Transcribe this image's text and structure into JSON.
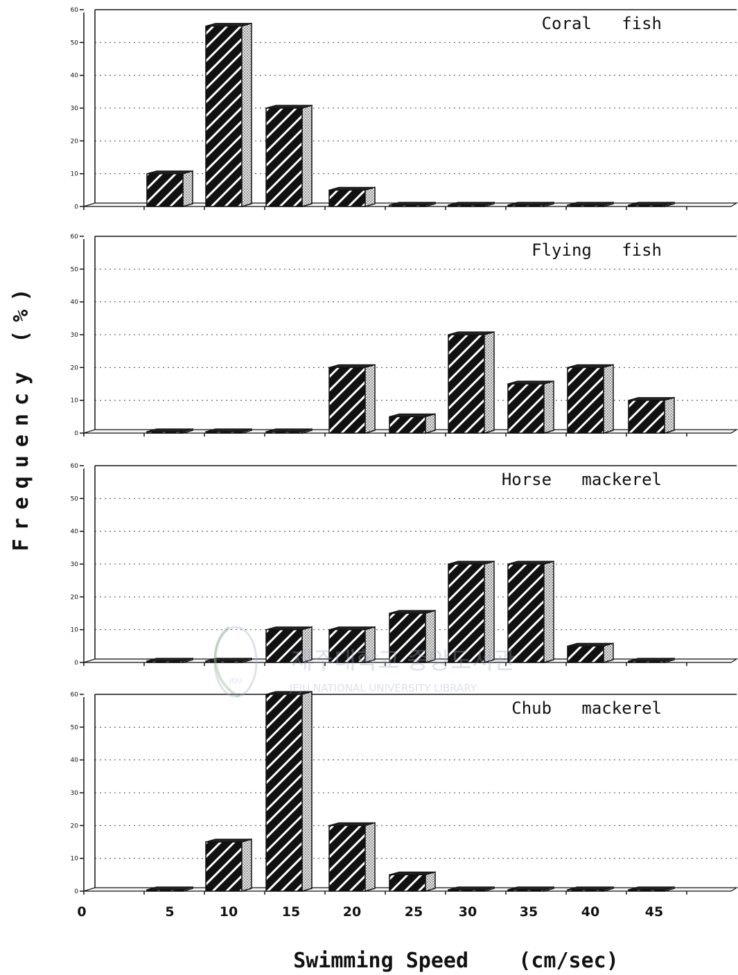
{
  "chart_data": {
    "type": "bar",
    "ylabel": "Frequency (%)",
    "xlabel": "Swimming Speed    (cm/sec)",
    "x_ticks": [
      "0",
      "5",
      "10",
      "15",
      "20",
      "25",
      "30",
      "35",
      "40",
      "45"
    ],
    "categories": [
      "5",
      "10",
      "15",
      "20",
      "25",
      "30",
      "35",
      "40",
      "45"
    ],
    "y_ticks": [
      "0",
      "10",
      "20",
      "30",
      "40",
      "50",
      "60"
    ],
    "ylim": [
      0,
      60
    ],
    "grid": true,
    "panels": [
      {
        "title": "Coral   fish",
        "values": [
          10,
          55,
          30,
          5,
          0,
          0,
          0,
          0,
          0
        ]
      },
      {
        "title": "Flying   fish",
        "values": [
          0,
          0,
          0,
          20,
          5,
          30,
          15,
          20,
          10
        ]
      },
      {
        "title": "Horse   mackerel",
        "values": [
          0,
          0,
          10,
          10,
          15,
          30,
          30,
          5,
          0
        ]
      },
      {
        "title": "Chub   mackerel",
        "values": [
          0,
          15,
          60,
          20,
          5,
          0,
          0,
          0,
          0
        ]
      }
    ]
  },
  "watermark": {
    "korean": "제주대학교 중앙도서관",
    "english": "JEJU NATIONAL UNIVERSITY LIBRARY",
    "logo_text": "JEJU"
  }
}
